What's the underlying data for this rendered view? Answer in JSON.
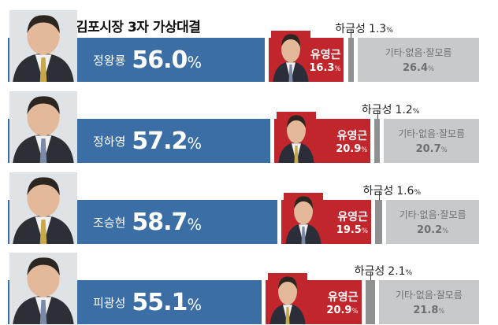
{
  "title": "김포시장 3자 가상대결",
  "labels": {
    "other": "기타·없음·잘모름"
  },
  "colors": {
    "blue": "#3a6ea5",
    "red": "#c0262c",
    "gray": "#c8c9ca",
    "separator": "#8f9092"
  },
  "chart_data": {
    "type": "bar",
    "orientation": "horizontal",
    "stacked": true,
    "title": "김포시장 3자 가상대결",
    "categories": [
      "정왕룡",
      "정하영",
      "조승현",
      "피광성"
    ],
    "series": [
      {
        "name": "",
        "labels": [
          "정왕룡",
          "정하영",
          "조승현",
          "피광성"
        ],
        "values": [
          56.0,
          57.2,
          58.7,
          55.1
        ]
      },
      {
        "name": "유영근",
        "values": [
          16.3,
          20.9,
          19.5,
          20.9
        ]
      },
      {
        "name": "하금성",
        "values": [
          1.3,
          1.2,
          1.6,
          2.1
        ]
      },
      {
        "name": "기타·없음·잘모름",
        "values": [
          26.4,
          20.7,
          20.2,
          21.8
        ]
      }
    ],
    "unit": "%"
  },
  "rows": [
    {
      "name": "정왕룡",
      "blue": "56.0",
      "red_name": "유영근",
      "red": "16.3",
      "small_name": "하금성",
      "small": "1.3",
      "gray": "26.4"
    },
    {
      "name": "정하영",
      "blue": "57.2",
      "red_name": "유영근",
      "red": "20.9",
      "small_name": "하금성",
      "small": "1.2",
      "gray": "20.7"
    },
    {
      "name": "조승현",
      "blue": "58.7",
      "red_name": "유영근",
      "red": "19.5",
      "small_name": "하금성",
      "small": "1.6",
      "gray": "20.2"
    },
    {
      "name": "피광성",
      "blue": "55.1",
      "red_name": "유영근",
      "red": "20.9",
      "small_name": "하금성",
      "small": "2.1",
      "gray": "21.8"
    }
  ]
}
